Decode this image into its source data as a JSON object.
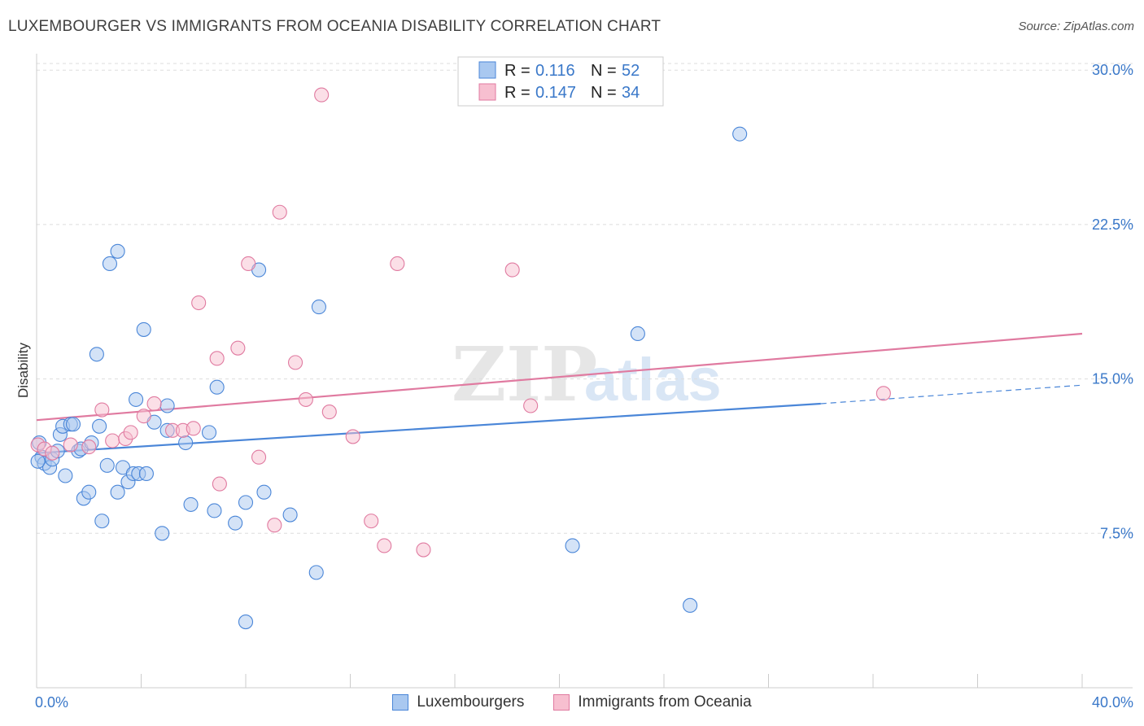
{
  "title": "LUXEMBOURGER VS IMMIGRANTS FROM OCEANIA DISABILITY CORRELATION CHART",
  "source": "Source: ZipAtlas.com",
  "watermark": {
    "zip": "ZIP",
    "atlas": "atlas"
  },
  "chart_data": {
    "type": "scatter",
    "ylabel": "Disability",
    "xlim": [
      0,
      40
    ],
    "ylim": [
      0,
      30.8
    ],
    "x_tick_labels": [
      "0.0%",
      "40.0%"
    ],
    "y_ticks": [
      7.5,
      15.0,
      22.5,
      30.0
    ],
    "y_tick_labels": [
      "7.5%",
      "15.0%",
      "22.5%",
      "30.0%"
    ],
    "grid": true,
    "legend_position": "top-center",
    "series": [
      {
        "name": "Luxembourgers",
        "color": "#4a86d8",
        "fill": "#a9c8f0",
        "R": "0.116",
        "N": "52",
        "trend": {
          "x0": 0,
          "y0": 11.4,
          "x1": 30,
          "y1": 13.8,
          "dash_to_x": 40,
          "dash_to_y": 14.7
        },
        "points": [
          [
            0.1,
            11.9
          ],
          [
            0.2,
            11.2
          ],
          [
            0.3,
            10.9
          ],
          [
            0.5,
            10.7
          ],
          [
            0.6,
            11.1
          ],
          [
            0.8,
            11.5
          ],
          [
            0.9,
            12.3
          ],
          [
            1.0,
            12.7
          ],
          [
            1.1,
            10.3
          ],
          [
            1.3,
            12.8
          ],
          [
            1.4,
            12.8
          ],
          [
            1.6,
            11.5
          ],
          [
            1.7,
            11.6
          ],
          [
            1.8,
            9.2
          ],
          [
            2.0,
            9.5
          ],
          [
            2.1,
            11.9
          ],
          [
            2.3,
            16.2
          ],
          [
            2.4,
            12.7
          ],
          [
            2.5,
            8.1
          ],
          [
            2.7,
            10.8
          ],
          [
            2.8,
            20.6
          ],
          [
            3.1,
            21.2
          ],
          [
            3.1,
            9.5
          ],
          [
            3.3,
            10.7
          ],
          [
            3.5,
            10.0
          ],
          [
            3.7,
            10.4
          ],
          [
            3.8,
            14.0
          ],
          [
            3.9,
            10.4
          ],
          [
            4.1,
            17.4
          ],
          [
            4.2,
            10.4
          ],
          [
            4.5,
            12.9
          ],
          [
            4.8,
            7.5
          ],
          [
            5.0,
            12.5
          ],
          [
            5.0,
            13.7
          ],
          [
            5.7,
            11.9
          ],
          [
            5.9,
            8.9
          ],
          [
            6.6,
            12.4
          ],
          [
            6.8,
            8.6
          ],
          [
            6.9,
            14.6
          ],
          [
            7.6,
            8.0
          ],
          [
            8.0,
            9.0
          ],
          [
            8.0,
            3.2
          ],
          [
            8.5,
            20.3
          ],
          [
            8.7,
            9.5
          ],
          [
            9.7,
            8.4
          ],
          [
            10.7,
            5.6
          ],
          [
            10.8,
            18.5
          ],
          [
            20.5,
            6.9
          ],
          [
            23.0,
            17.2
          ],
          [
            25.0,
            4.0
          ],
          [
            26.9,
            26.9
          ],
          [
            0.05,
            11.0
          ]
        ]
      },
      {
        "name": "Immigrants from Oceania",
        "color": "#e07aa0",
        "fill": "#f7bfd0",
        "R": "0.147",
        "N": "34",
        "trend": {
          "x0": 0,
          "y0": 13.0,
          "x1": 40,
          "y1": 17.2
        },
        "points": [
          [
            0.05,
            11.8
          ],
          [
            0.3,
            11.6
          ],
          [
            0.6,
            11.4
          ],
          [
            1.3,
            11.8
          ],
          [
            2.0,
            11.7
          ],
          [
            2.5,
            13.5
          ],
          [
            2.9,
            12.0
          ],
          [
            3.4,
            12.1
          ],
          [
            3.6,
            12.4
          ],
          [
            4.1,
            13.2
          ],
          [
            4.5,
            13.8
          ],
          [
            5.2,
            12.5
          ],
          [
            5.6,
            12.5
          ],
          [
            6.0,
            12.6
          ],
          [
            6.2,
            18.7
          ],
          [
            6.9,
            16.0
          ],
          [
            7.0,
            9.9
          ],
          [
            7.7,
            16.5
          ],
          [
            8.1,
            20.6
          ],
          [
            8.5,
            11.2
          ],
          [
            9.1,
            7.9
          ],
          [
            9.3,
            23.1
          ],
          [
            9.9,
            15.8
          ],
          [
            10.3,
            14.0
          ],
          [
            10.9,
            28.8
          ],
          [
            11.2,
            13.4
          ],
          [
            12.1,
            12.2
          ],
          [
            12.8,
            8.1
          ],
          [
            13.3,
            6.9
          ],
          [
            13.8,
            20.6
          ],
          [
            14.8,
            6.7
          ],
          [
            18.2,
            20.3
          ],
          [
            18.9,
            13.7
          ],
          [
            32.4,
            14.3
          ]
        ]
      }
    ]
  }
}
